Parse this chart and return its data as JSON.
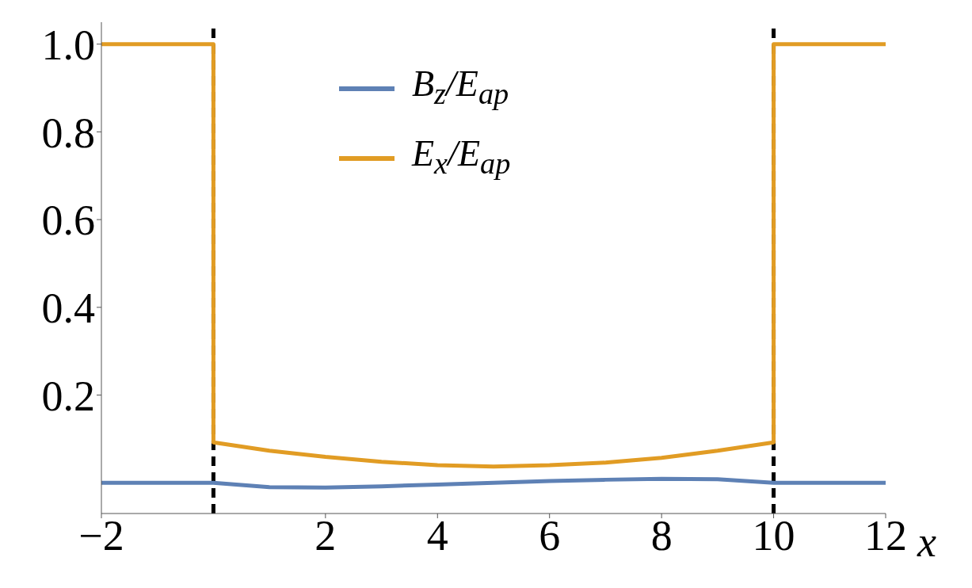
{
  "chart_data": {
    "type": "line",
    "xlabel": "x",
    "xlim": [
      -2,
      12
    ],
    "xticks": [
      -2,
      2,
      4,
      6,
      8,
      10,
      12
    ],
    "ylim": [
      -0.07,
      1.05
    ],
    "yticks": [
      0.2,
      0.4,
      0.6,
      0.8,
      {
        "value": 1,
        "label": "1.0"
      }
    ],
    "legend": "top",
    "marker": "none",
    "line_style": "solid",
    "series": [
      {
        "name": "B$_{z}$/E$_{ap}$",
        "color": "#5e81b5",
        "x": [
          -2,
          0,
          1,
          2,
          3,
          4,
          5,
          6,
          7,
          8,
          9,
          10,
          12
        ],
        "values": [
          0,
          0,
          -0.01,
          -0.011,
          -0.008,
          -0.004,
          0,
          0.004,
          0.007,
          0.009,
          0.008,
          0,
          0
        ]
      },
      {
        "name": "E$_{x}$/E$_{ap}$",
        "color": "#e19c24",
        "x": [
          -2,
          0,
          0,
          1,
          2,
          3,
          4,
          5,
          6,
          7,
          8,
          9,
          10,
          10,
          12
        ],
        "values": [
          1,
          1,
          0.092,
          0.073,
          0.059,
          0.048,
          0.04,
          0.037,
          0.04,
          0.046,
          0.057,
          0.073,
          0.092,
          1,
          1
        ]
      }
    ],
    "ref_lines": [
      {
        "axis": "x",
        "value": 0,
        "color": "#000000",
        "line_style": "dashed"
      },
      {
        "axis": "x",
        "value": 10,
        "color": "#000000",
        "line_style": "dashed"
      }
    ]
  }
}
